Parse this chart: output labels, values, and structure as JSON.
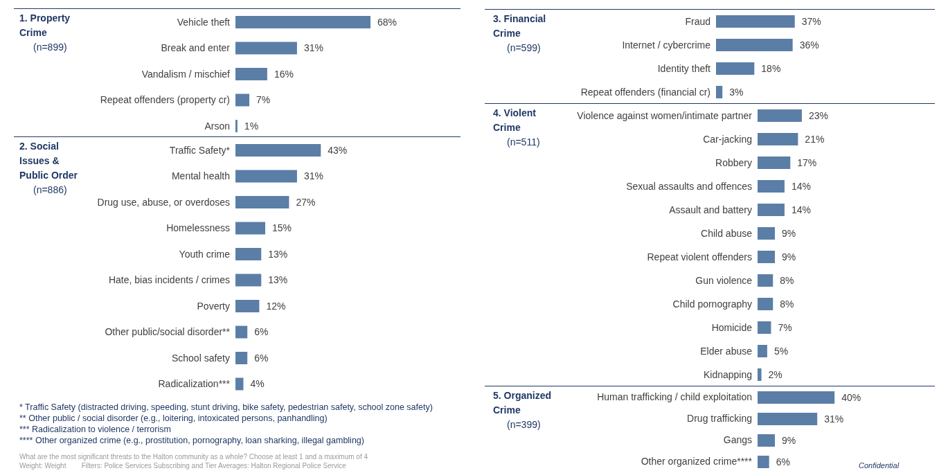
{
  "chart_data": [
    {
      "type": "bar",
      "orientation": "horizontal",
      "title": "1. Property Crime",
      "subtitle": "(n=899)",
      "categories": [
        "Vehicle theft",
        "Break and enter",
        "Vandalism / mischief",
        "Repeat offenders (property cr)",
        "Arson"
      ],
      "values": [
        68,
        31,
        16,
        7,
        1
      ],
      "value_labels": [
        "68%",
        "31%",
        "16%",
        "7%",
        "1%"
      ],
      "color": "#5b7ea6"
    },
    {
      "type": "bar",
      "orientation": "horizontal",
      "title": "2. Social Issues & Public Order",
      "subtitle": "(n=886)",
      "categories": [
        "Traffic Safety*",
        "Mental health",
        "Drug use, abuse, or overdoses",
        "Homelessness",
        "Youth crime",
        "Hate, bias incidents / crimes",
        "Poverty",
        "Other public/social disorder**",
        "School safety",
        "Radicalization***"
      ],
      "values": [
        43,
        31,
        27,
        15,
        13,
        13,
        12,
        6,
        6,
        4
      ],
      "value_labels": [
        "43%",
        "31%",
        "27%",
        "15%",
        "13%",
        "13%",
        "12%",
        "6%",
        "6%",
        "4%"
      ],
      "color": "#5b7ea6",
      "annotations": [
        "* Traffic Safety (distracted driving, speeding, stunt driving, bike safety, pedestrian safety, school zone safety)",
        "** Other public / social disorder (e.g., loitering, intoxicated persons, panhandling)",
        "*** Radicalization to violence / terrorism",
        "**** Other organized crime (e.g., prostitution, pornography, loan sharking, illegal gambling)",
        "What are the most significant threats to the Halton community as a whole? Choose at least 1 and a maximum of 4",
        "Weight: Weight        Filters: Police Services Subscribing and Tier Averages: Halton Regional Police Service"
      ]
    },
    {
      "type": "bar",
      "orientation": "horizontal",
      "title": "3. Financial Crime",
      "subtitle": "(n=599)",
      "categories": [
        "Fraud",
        "Internet / cybercrime",
        "Identity theft",
        "Repeat offenders (financial cr)"
      ],
      "values": [
        37,
        36,
        18,
        3
      ],
      "value_labels": [
        "37%",
        "36%",
        "18%",
        "3%"
      ],
      "color": "#5b7ea6"
    },
    {
      "type": "bar",
      "orientation": "horizontal",
      "title": "4. Violent Crime",
      "subtitle": "(n=511)",
      "categories": [
        "Violence against women/intimate partner",
        "Car-jacking",
        "Robbery",
        "Sexual assaults and offences",
        "Assault and battery",
        "Child abuse",
        "Repeat violent offenders",
        "Gun violence",
        "Child pornography",
        "Homicide",
        "Elder abuse",
        "Kidnapping"
      ],
      "values": [
        23,
        21,
        17,
        14,
        14,
        9,
        9,
        8,
        8,
        7,
        5,
        2
      ],
      "value_labels": [
        "23%",
        "21%",
        "17%",
        "14%",
        "14%",
        "9%",
        "9%",
        "8%",
        "8%",
        "7%",
        "5%",
        "2%"
      ],
      "color": "#5b7ea6"
    },
    {
      "type": "bar",
      "orientation": "horizontal",
      "title": "5. Organized Crime",
      "subtitle": "(n=399)",
      "categories": [
        "Human trafficking / child exploitation",
        "Drug trafficking",
        "Gangs",
        "Other organized crime****"
      ],
      "values": [
        40,
        31,
        9,
        6
      ],
      "value_labels": [
        "40%",
        "31%",
        "9%",
        "6%"
      ],
      "color": "#5b7ea6",
      "annotations": [
        "Confidential"
      ]
    }
  ]
}
